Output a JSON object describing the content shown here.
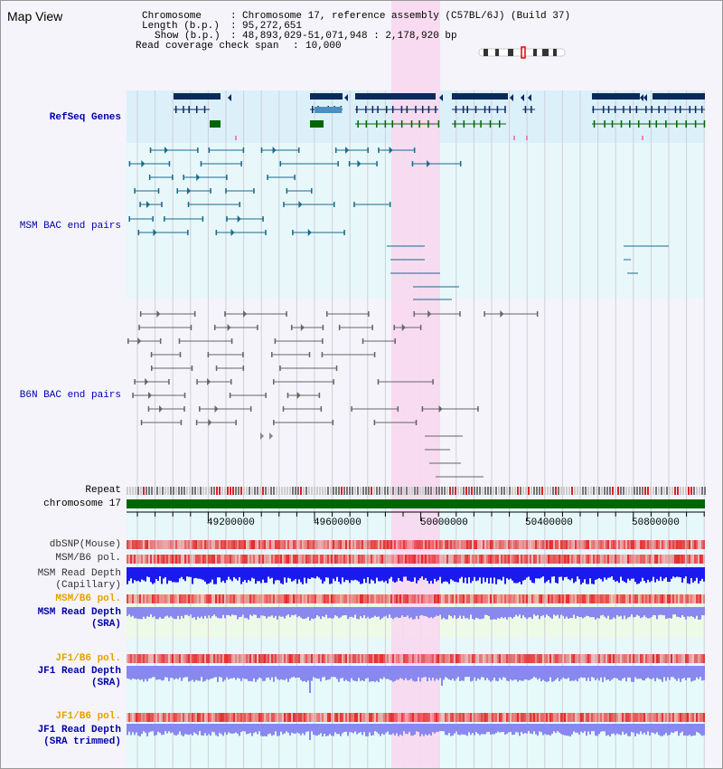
{
  "app": {
    "title": "Map View"
  },
  "info": {
    "chromosome_key": "Chromosome",
    "chromosome_val": "Chromosome 17, reference assembly (C57BL/6J) (Build 37)",
    "length_key": "Length (b.p.)",
    "length_val": "95,272,651",
    "show_key": "Show (b.p.)",
    "show_val": "48,893,029-51,071,948 : 2,178,920 bp",
    "coverage_key": "Read coverage check span",
    "coverage_val": "10,000"
  },
  "tracks": {
    "refseq": "RefSeq Genes",
    "msm_bac": "MSM BAC end pairs",
    "b6n_bac": "B6N BAC end pairs",
    "repeat": "Repeat",
    "chromosome": "chromosome 17",
    "dbsnp": "dbSNP(Mouse)",
    "msm_b6_pol_1": "MSM/B6 pol.",
    "msm_depth_cap_1": "MSM Read Depth",
    "msm_depth_cap_2": "(Capillary)",
    "msm_b6_pol_2": "MSM/B6 pol.",
    "msm_depth_sra_1": "MSM Read Depth",
    "msm_depth_sra_2": "(SRA)",
    "jf1_b6_pol_1": "JF1/B6 pol.",
    "jf1_depth_sra_1": "JF1 Read Depth",
    "jf1_depth_sra_2": "(SRA)",
    "jf1_b6_pol_2": "JF1/B6 pol.",
    "jf1_depth_trim_1": "JF1 Read Depth",
    "jf1_depth_trim_2": "(SRA trimmed)"
  },
  "axis": {
    "ticks": [
      "49200000",
      "49600000",
      "50000000",
      "50400000",
      "50800000"
    ]
  },
  "colors": {
    "gene": "#0a2a5c",
    "gene_light": "#4a90c0",
    "gene_green": "#006600",
    "msm_pair": "#1a6a8a",
    "b6n_pair": "#666666",
    "chromosome": "#006600",
    "highlight": "#f8d8f0",
    "depth_capillary": "#1a1aee",
    "depth_sra": "#8888ee",
    "label_blue": "#0000aa",
    "label_orange": "#e8a000"
  }
}
